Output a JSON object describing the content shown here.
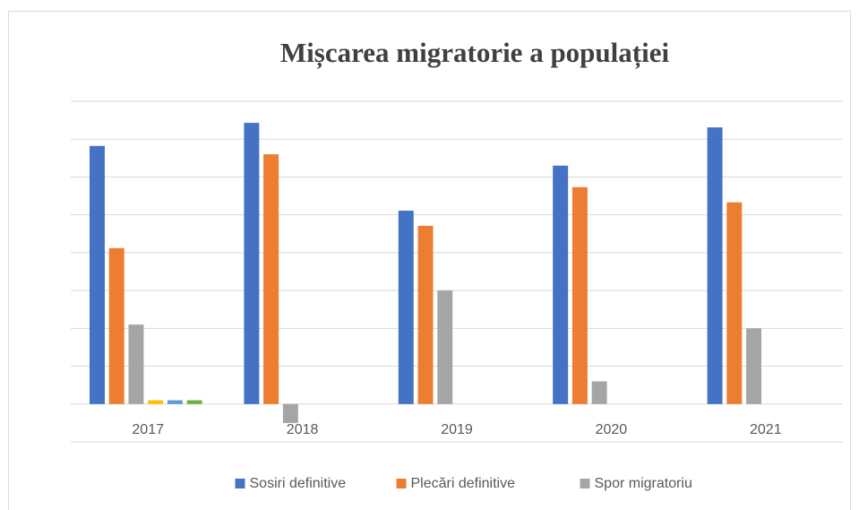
{
  "chart_data": {
    "type": "bar",
    "title": "Mișcarea migratorie a populației",
    "categories": [
      "2017",
      "2018",
      "2019",
      "2020",
      "2021"
    ],
    "series": [
      {
        "name": "Sosiri definitive",
        "color": "#4472c4",
        "values": [
          6.82,
          7.43,
          5.11,
          6.3,
          7.31
        ]
      },
      {
        "name": "Plecări definitive",
        "color": "#ed7d31",
        "values": [
          4.12,
          6.6,
          4.71,
          5.73,
          5.33
        ]
      },
      {
        "name": "Spor migratoriu",
        "color": "#a5a5a5",
        "values": [
          2.1,
          -0.5,
          3.0,
          0.6,
          2.0
        ]
      },
      {
        "color": "#ffc000",
        "values": [
          0.1,
          null,
          null,
          null,
          null
        ]
      },
      {
        "color": "#5b9bd5",
        "values": [
          0.1,
          null,
          null,
          null,
          null
        ]
      },
      {
        "color": "#70ad47",
        "values": [
          0.1,
          null,
          null,
          null,
          null
        ]
      }
    ],
    "ylim": [
      -1,
      8
    ],
    "yticks": [
      -1,
      0,
      1,
      2,
      3,
      4,
      5,
      6,
      7,
      8
    ],
    "grid": true,
    "legend": "bottom"
  }
}
